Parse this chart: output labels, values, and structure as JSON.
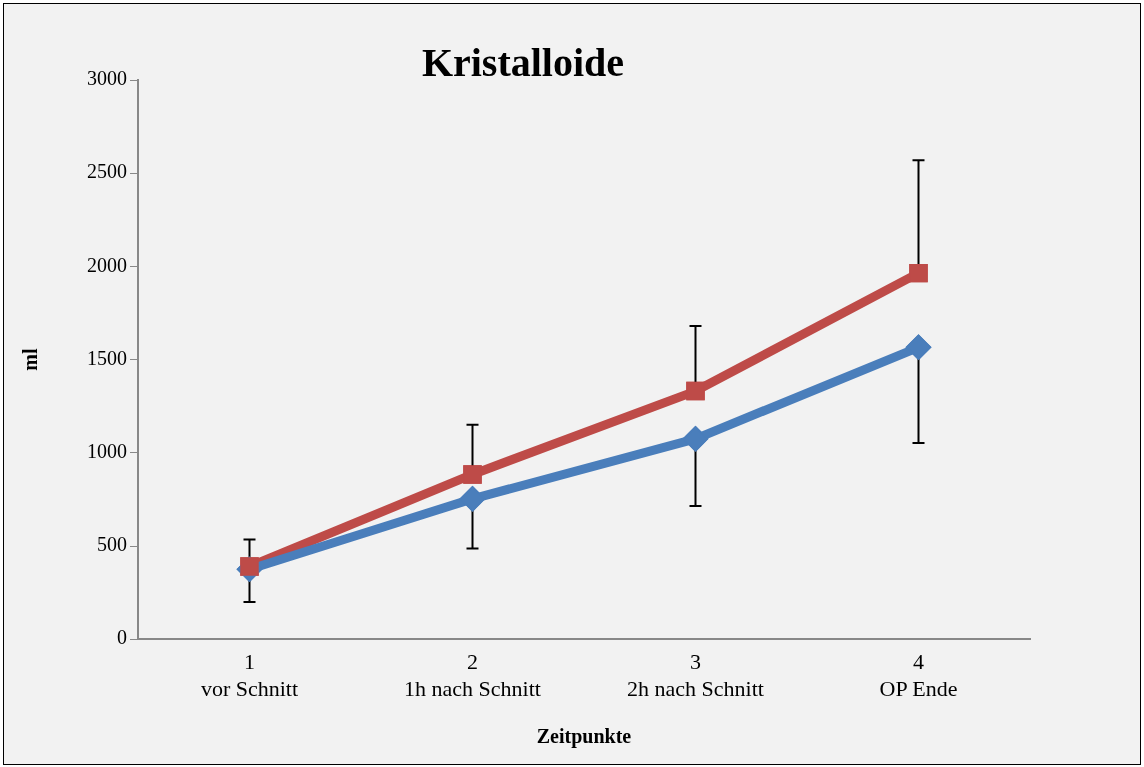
{
  "chart_data": {
    "type": "line",
    "title": "Kristalloide",
    "xlabel": "Zeitpunkte",
    "ylabel": "ml",
    "categories": [
      "1\nvor Schnitt",
      "2\n1h nach Schnitt",
      "3\n2h nach Schnitt",
      "4\nOP Ende"
    ],
    "series": [
      {
        "color": "#4a7ebb",
        "marker": "diamond",
        "values": [
          375,
          753,
          1075,
          1566
        ],
        "errors": [
          [
            200,
            375
          ],
          [
            486,
            753
          ],
          [
            715,
            1075
          ],
          [
            1053,
            1566
          ]
        ]
      },
      {
        "color": "#be4b48",
        "marker": "square",
        "values": [
          390,
          884,
          1331,
          1964
        ],
        "errors": [
          [
            390,
            535
          ],
          [
            884,
            1150
          ],
          [
            1331,
            1680
          ],
          [
            1964,
            2570
          ]
        ]
      }
    ],
    "ylim": [
      0,
      3000
    ],
    "yticks": [
      0,
      500,
      1000,
      1500,
      2000,
      2500,
      3000
    ],
    "grid": false,
    "legend": false
  }
}
